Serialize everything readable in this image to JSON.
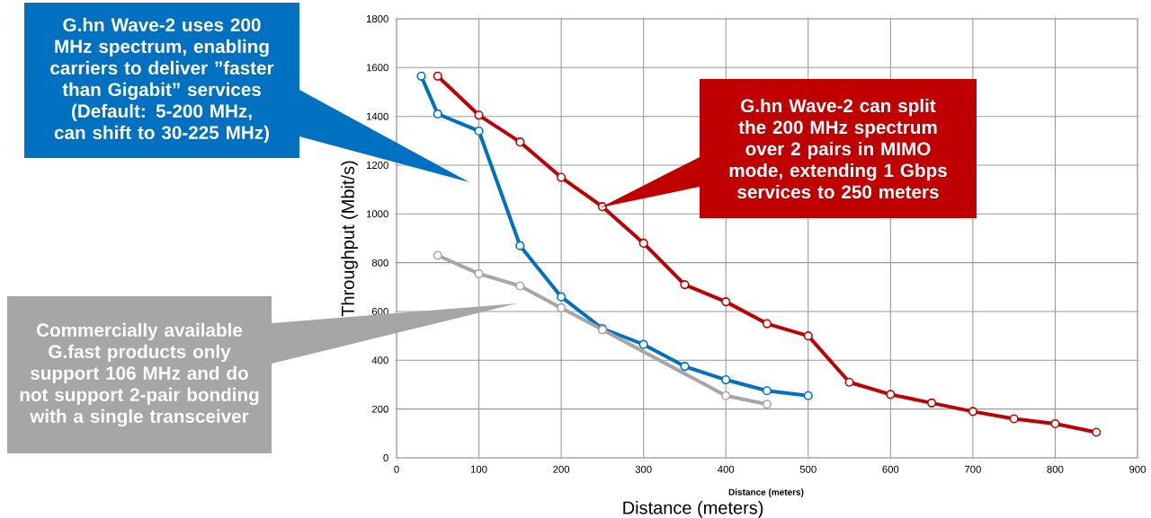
{
  "chart_data": {
    "type": "line",
    "xlabel": "Distance (meters)",
    "ylabel": "Throughput (Mbit/s)",
    "xlim": [
      0,
      900
    ],
    "ylim": [
      0,
      1800
    ],
    "xticks": [
      0,
      100,
      200,
      300,
      400,
      500,
      600,
      700,
      800,
      900
    ],
    "yticks": [
      0,
      200,
      400,
      600,
      800,
      1000,
      1200,
      1400,
      1600,
      1800
    ],
    "grid": true,
    "marker": "circle",
    "line_style": "solid",
    "series": [
      {
        "color": "#c00000",
        "x": [
          50,
          100,
          150,
          200,
          250,
          300,
          350,
          400,
          450,
          500,
          550,
          600,
          650,
          700,
          750,
          800,
          850
        ],
        "values": [
          1565,
          1405,
          1295,
          1150,
          1030,
          880,
          710,
          640,
          550,
          500,
          310,
          260,
          225,
          190,
          160,
          140,
          105
        ]
      },
      {
        "color": "#0070c0",
        "x": [
          30,
          50,
          100,
          150,
          200,
          250,
          300,
          350,
          400,
          450,
          500
        ],
        "values": [
          1565,
          1410,
          1340,
          870,
          660,
          530,
          465,
          375,
          320,
          275,
          255
        ]
      },
      {
        "color": "#a6a6a6",
        "x": [
          50,
          100,
          150,
          200,
          250,
          400,
          450
        ],
        "values": [
          830,
          755,
          705,
          615,
          525,
          255,
          220
        ]
      }
    ],
    "annotations": [
      "G.hn Wave-2 uses 200 MHz spectrum, enabling carriers to deliver ”faster than Gigabit” services (Default: 5-200 MHz, can shift to 30-225 MHz)",
      "G.hn Wave-2 can split the 200 MHz spectrum over 2 pairs in MIMO mode, extending 1 Gbps services to 250 meters",
      "Commercially available G.fast products only support 106 MHz and do not support 2-pair bonding with a single transceiver",
      "Distance  (meters)"
    ]
  }
}
